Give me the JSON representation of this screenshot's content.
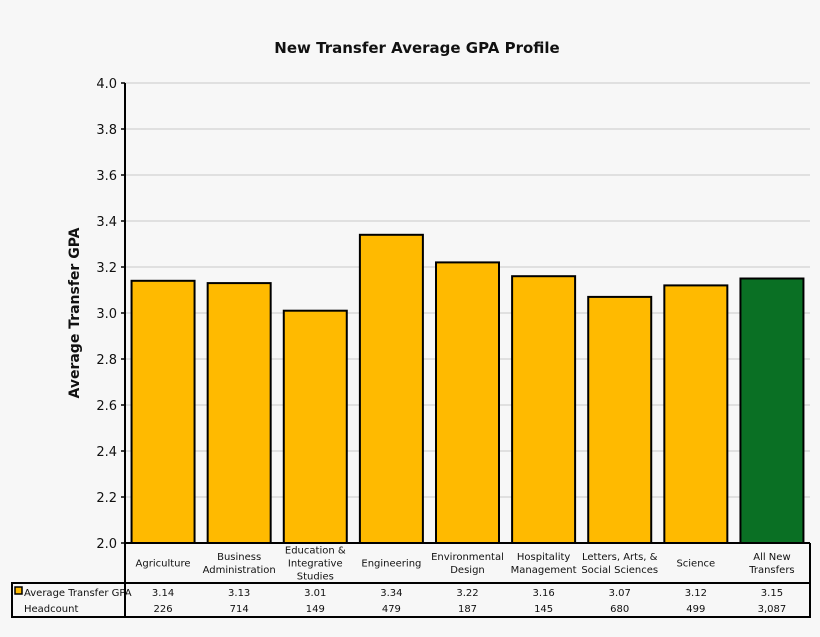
{
  "chart_data": {
    "type": "bar",
    "title": "New Transfer Average GPA Profile",
    "xlabel": "",
    "ylabel": "Average Transfer GPA",
    "ylim": [
      2.0,
      4.0
    ],
    "yticks": [
      "2.0",
      "2.2",
      "2.4",
      "2.6",
      "2.8",
      "3.0",
      "3.2",
      "3.4",
      "3.6",
      "3.8",
      "4.0"
    ],
    "grid": true,
    "categories": [
      [
        "Agriculture"
      ],
      [
        "Business",
        "Administration"
      ],
      [
        "Education &",
        "Integrative",
        "Studies"
      ],
      [
        "Engineering"
      ],
      [
        "Environmental",
        "Design"
      ],
      [
        "Hospitality",
        "Management"
      ],
      [
        "Letters, Arts, &",
        "Social Sciences"
      ],
      [
        "Science"
      ],
      [
        "All New",
        "Transfers"
      ]
    ],
    "series": [
      {
        "name": "Average Transfer GPA",
        "values": [
          3.14,
          3.13,
          3.01,
          3.34,
          3.22,
          3.16,
          3.07,
          3.12,
          3.15
        ],
        "labels": [
          "3.14",
          "3.13",
          "3.01",
          "3.34",
          "3.22",
          "3.16",
          "3.07",
          "3.12",
          "3.15"
        ]
      }
    ],
    "table_rows": [
      {
        "name": "Headcount",
        "labels": [
          "226",
          "714",
          "149",
          "479",
          "187",
          "145",
          "680",
          "499",
          "3,087"
        ]
      }
    ],
    "colors": {
      "bar": "#FFBA00",
      "highlight_bar": "#0A7024",
      "highlight_index": 8
    }
  }
}
